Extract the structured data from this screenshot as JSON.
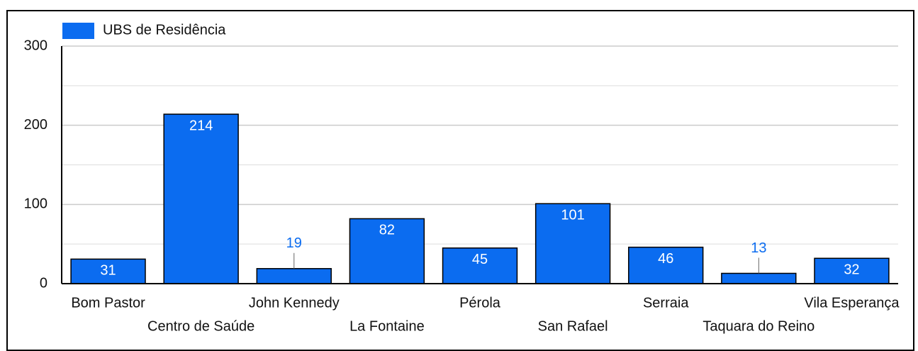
{
  "chart_data": {
    "type": "bar",
    "legend": "UBS de Residência",
    "legend_position": "top-left",
    "categories": [
      "Bom Pastor",
      "Centro de Saúde",
      "John Kennedy",
      "La Fontaine",
      "Pérola",
      "San Rafael",
      "Serraia",
      "Taquara do Reino",
      "Vila Esperança"
    ],
    "values": [
      31,
      214,
      19,
      82,
      45,
      101,
      46,
      13,
      32
    ],
    "color": "#0b6cf0",
    "ylim": [
      0,
      300
    ],
    "yticks": [
      0,
      100,
      200,
      300
    ],
    "grid": true,
    "minor_grid": true
  }
}
